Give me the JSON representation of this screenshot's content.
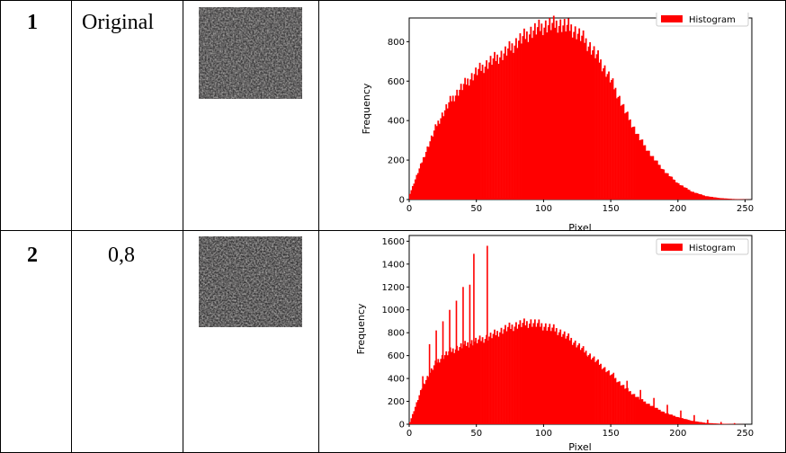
{
  "rows": [
    {
      "number": "1",
      "label": "Original"
    },
    {
      "number": "2",
      "label": "0,8"
    }
  ],
  "colors": {
    "bar": "#ff0000",
    "axis": "#000000",
    "border": "#000000"
  },
  "chart_data": [
    {
      "type": "bar",
      "xlabel": "Pixel",
      "ylabel": "Frequency",
      "legend": "Histogram",
      "legend_position": "top-right",
      "xlim": [
        0,
        255
      ],
      "ylim": [
        0,
        920
      ],
      "xticks": [
        0,
        50,
        100,
        150,
        200,
        250
      ],
      "yticks": [
        0,
        200,
        400,
        600,
        800
      ],
      "x": [
        0,
        10,
        20,
        30,
        40,
        50,
        60,
        70,
        80,
        90,
        100,
        110,
        120,
        130,
        140,
        150,
        160,
        170,
        180,
        190,
        200,
        210,
        220,
        230,
        240,
        250,
        255
      ],
      "values": [
        30,
        210,
        380,
        500,
        580,
        650,
        700,
        740,
        800,
        850,
        880,
        890,
        870,
        810,
        720,
        600,
        450,
        320,
        220,
        140,
        80,
        40,
        18,
        8,
        3,
        1,
        0
      ]
    },
    {
      "type": "bar",
      "xlabel": "Pixel",
      "ylabel": "Frequency",
      "legend": "Histogram",
      "legend_position": "top-right",
      "xlim": [
        0,
        255
      ],
      "ylim": [
        0,
        1650
      ],
      "xticks": [
        0,
        50,
        100,
        150,
        200,
        250
      ],
      "yticks": [
        0,
        200,
        400,
        600,
        800,
        1000,
        1200,
        1400,
        1600
      ],
      "x": [
        0,
        10,
        20,
        30,
        40,
        50,
        60,
        70,
        80,
        90,
        100,
        110,
        120,
        130,
        140,
        150,
        160,
        170,
        180,
        190,
        200,
        210,
        220,
        230,
        240,
        250,
        255
      ],
      "values": [
        20,
        350,
        550,
        640,
        690,
        730,
        770,
        830,
        870,
        890,
        860,
        820,
        740,
        640,
        540,
        430,
        320,
        230,
        160,
        100,
        60,
        30,
        12,
        5,
        2,
        0,
        0
      ],
      "spikes": [
        [
          10,
          420
        ],
        [
          15,
          700
        ],
        [
          20,
          820
        ],
        [
          25,
          900
        ],
        [
          30,
          1000
        ],
        [
          35,
          1080
        ],
        [
          40,
          1200
        ],
        [
          45,
          1220
        ],
        [
          48,
          1490
        ],
        [
          58,
          1560
        ],
        [
          112,
          800
        ],
        [
          122,
          680
        ],
        [
          132,
          600
        ],
        [
          142,
          520
        ],
        [
          152,
          450
        ],
        [
          162,
          380
        ],
        [
          172,
          300
        ],
        [
          182,
          230
        ],
        [
          192,
          170
        ],
        [
          202,
          120
        ],
        [
          212,
          80
        ],
        [
          222,
          40
        ],
        [
          232,
          20
        ],
        [
          242,
          10
        ]
      ]
    }
  ]
}
